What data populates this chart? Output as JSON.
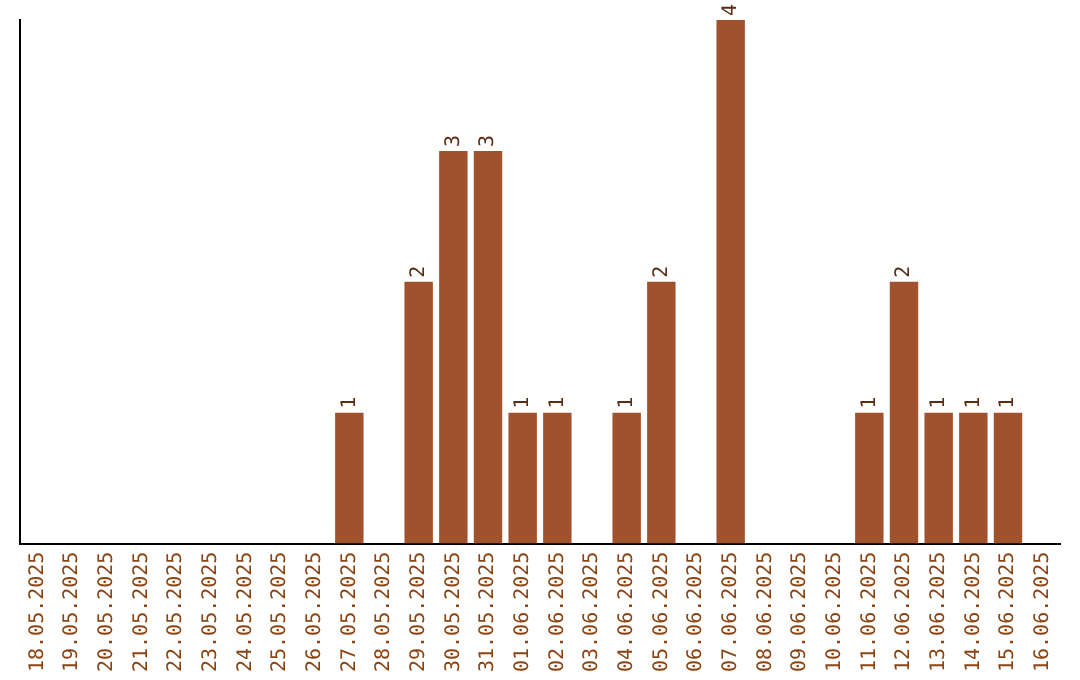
{
  "chart_data": {
    "type": "bar",
    "categories": [
      "18.05.2025",
      "19.05.2025",
      "20.05.2025",
      "21.05.2025",
      "22.05.2025",
      "23.05.2025",
      "24.05.2025",
      "25.05.2025",
      "26.05.2025",
      "27.05.2025",
      "28.05.2025",
      "29.05.2025",
      "30.05.2025",
      "31.05.2025",
      "01.06.2025",
      "02.06.2025",
      "03.06.2025",
      "04.06.2025",
      "05.06.2025",
      "06.06.2025",
      "07.06.2025",
      "08.06.2025",
      "09.06.2025",
      "10.06.2025",
      "11.06.2025",
      "12.06.2025",
      "13.06.2025",
      "14.06.2025",
      "15.06.2025",
      "16.06.2025"
    ],
    "values": [
      0,
      0,
      0,
      0,
      0,
      0,
      0,
      0,
      0,
      1,
      0,
      2,
      3,
      3,
      1,
      1,
      0,
      1,
      2,
      0,
      4,
      0,
      0,
      0,
      1,
      2,
      1,
      1,
      1,
      0
    ],
    "value_labels": [
      null,
      null,
      null,
      null,
      null,
      null,
      null,
      null,
      null,
      "1",
      null,
      "2",
      "3",
      "3",
      "1",
      "1",
      null,
      "1",
      "2",
      null,
      "4",
      null,
      null,
      null,
      "1",
      "2",
      "1",
      "1",
      "1",
      null
    ],
    "color": "#a0522d",
    "grid": false,
    "legend": false,
    "tick_labels": "x"
  }
}
